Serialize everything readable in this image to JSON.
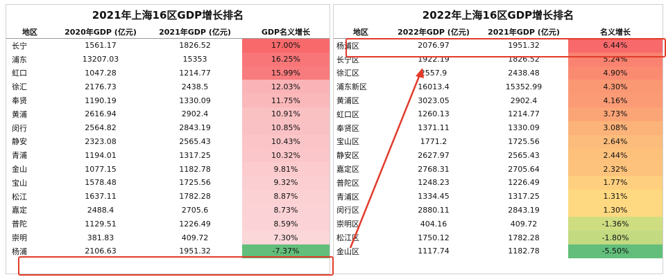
{
  "left": {
    "title": "2021年上海16区GDP增长排名",
    "headers": [
      "地区",
      "2020年GDP (亿元)",
      "2021年GDP (亿元)",
      "GDP名义增长"
    ],
    "rows": [
      {
        "district": "长宁",
        "gdp_prev": "1561.17",
        "gdp_cur": "1826.52",
        "growth": "17.00%",
        "growth_value": 17.0
      },
      {
        "district": "浦东",
        "gdp_prev": "13207.03",
        "gdp_cur": "15353",
        "growth": "16.25%",
        "growth_value": 16.25
      },
      {
        "district": "虹口",
        "gdp_prev": "1047.28",
        "gdp_cur": "1214.77",
        "growth": "15.99%",
        "growth_value": 15.99
      },
      {
        "district": "徐汇",
        "gdp_prev": "2176.73",
        "gdp_cur": "2438.5",
        "growth": "12.03%",
        "growth_value": 12.03
      },
      {
        "district": "奉贤",
        "gdp_prev": "1190.19",
        "gdp_cur": "1330.09",
        "growth": "11.75%",
        "growth_value": 11.75
      },
      {
        "district": "黄浦",
        "gdp_prev": "2616.94",
        "gdp_cur": "2902.4",
        "growth": "10.91%",
        "growth_value": 10.91
      },
      {
        "district": "闵行",
        "gdp_prev": "2564.82",
        "gdp_cur": "2843.19",
        "growth": "10.85%",
        "growth_value": 10.85
      },
      {
        "district": "静安",
        "gdp_prev": "2323.08",
        "gdp_cur": "2565.43",
        "growth": "10.43%",
        "growth_value": 10.43
      },
      {
        "district": "青浦",
        "gdp_prev": "1194.01",
        "gdp_cur": "1317.25",
        "growth": "10.32%",
        "growth_value": 10.32
      },
      {
        "district": "金山",
        "gdp_prev": "1077.15",
        "gdp_cur": "1182.78",
        "growth": "9.81%",
        "growth_value": 9.81
      },
      {
        "district": "宝山",
        "gdp_prev": "1578.48",
        "gdp_cur": "1725.56",
        "growth": "9.32%",
        "growth_value": 9.32
      },
      {
        "district": "松江",
        "gdp_prev": "1637.11",
        "gdp_cur": "1782.28",
        "growth": "8.87%",
        "growth_value": 8.87
      },
      {
        "district": "嘉定",
        "gdp_prev": "2488.4",
        "gdp_cur": "2705.6",
        "growth": "8.73%",
        "growth_value": 8.73
      },
      {
        "district": "普陀",
        "gdp_prev": "1129.51",
        "gdp_cur": "1226.49",
        "growth": "8.59%",
        "growth_value": 8.59
      },
      {
        "district": "崇明",
        "gdp_prev": "381.83",
        "gdp_cur": "409.72",
        "growth": "7.30%",
        "growth_value": 7.3
      },
      {
        "district": "杨浦",
        "gdp_prev": "2106.63",
        "gdp_cur": "1951.32",
        "growth": "-7.37%",
        "growth_value": -7.37
      }
    ]
  },
  "right": {
    "title": "2022年上海16区GDP增长排名",
    "headers": [
      "地区",
      "2022年GDP (亿元)",
      "2021年GDP (亿元)",
      "名义增长"
    ],
    "rows": [
      {
        "district": "杨浦区",
        "gdp_prev": "2076.97",
        "gdp_cur": "1951.32",
        "growth": "6.44%",
        "growth_value": 6.44
      },
      {
        "district": "长宁区",
        "gdp_prev": "1922.19",
        "gdp_cur": "1826.52",
        "growth": "5.24%",
        "growth_value": 5.24
      },
      {
        "district": "徐汇区",
        "gdp_prev": "2557.9",
        "gdp_cur": "2438.48",
        "growth": "4.90%",
        "growth_value": 4.9
      },
      {
        "district": "浦东新区",
        "gdp_prev": "16013.4",
        "gdp_cur": "15352.99",
        "growth": "4.30%",
        "growth_value": 4.3
      },
      {
        "district": "黄浦区",
        "gdp_prev": "3023.05",
        "gdp_cur": "2902.4",
        "growth": "4.16%",
        "growth_value": 4.16
      },
      {
        "district": "虹口区",
        "gdp_prev": "1260.13",
        "gdp_cur": "1214.77",
        "growth": "3.73%",
        "growth_value": 3.73
      },
      {
        "district": "奉贤区",
        "gdp_prev": "1371.11",
        "gdp_cur": "1330.09",
        "growth": "3.08%",
        "growth_value": 3.08
      },
      {
        "district": "宝山区",
        "gdp_prev": "1771.2",
        "gdp_cur": "1725.56",
        "growth": "2.64%",
        "growth_value": 2.64
      },
      {
        "district": "静安区",
        "gdp_prev": "2627.97",
        "gdp_cur": "2565.43",
        "growth": "2.44%",
        "growth_value": 2.44
      },
      {
        "district": "嘉定区",
        "gdp_prev": "2768.31",
        "gdp_cur": "2705.64",
        "growth": "2.32%",
        "growth_value": 2.32
      },
      {
        "district": "普陀区",
        "gdp_prev": "1248.23",
        "gdp_cur": "1226.49",
        "growth": "1.77%",
        "growth_value": 1.77
      },
      {
        "district": "青浦区",
        "gdp_prev": "1334.45",
        "gdp_cur": "1317.25",
        "growth": "1.31%",
        "growth_value": 1.31
      },
      {
        "district": "闵行区",
        "gdp_prev": "2880.11",
        "gdp_cur": "2843.19",
        "growth": "1.30%",
        "growth_value": 1.3
      },
      {
        "district": "崇明区",
        "gdp_prev": "404.16",
        "gdp_cur": "409.72",
        "growth": "-1.36%",
        "growth_value": -1.36
      },
      {
        "district": "松江区",
        "gdp_prev": "1750.12",
        "gdp_cur": "1782.28",
        "growth": "-1.80%",
        "growth_value": -1.8
      },
      {
        "district": "金山区",
        "gdp_prev": "1117.74",
        "gdp_cur": "1182.78",
        "growth": "-5.50%",
        "growth_value": -5.5
      }
    ]
  },
  "colors": {
    "highlight_border": "#e23a2a",
    "arrow": "#e23a2a",
    "left_growth_max": "#f8696b",
    "left_growth_min": "#fcfcff",
    "negative_growth": "#63be7b",
    "scale_red": "#f8696b",
    "scale_yellow": "#ffeb84",
    "scale_green": "#63be7b"
  }
}
